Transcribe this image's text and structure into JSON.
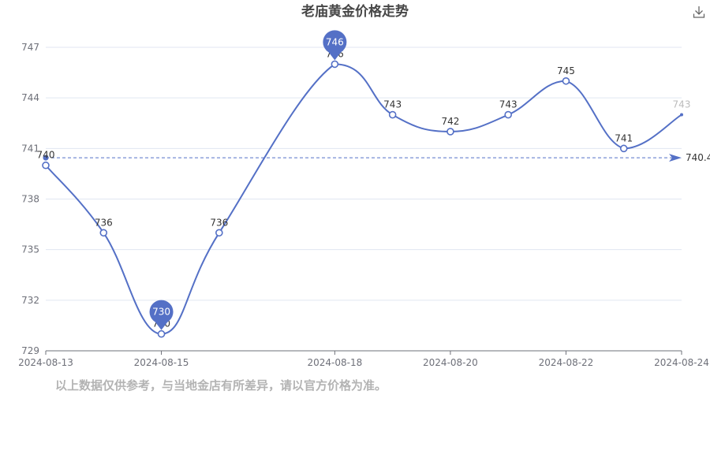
{
  "toolbar": {
    "download_icon": "download-icon"
  },
  "note": {
    "disclaimer": "以上数据仅供参考，与当地金店有所差异，请以官方价格为准。"
  },
  "chart_data": {
    "type": "line",
    "title": "老庙黄金价格走势",
    "xlabel": "",
    "ylabel": "",
    "ylim": [
      729,
      747
    ],
    "yticks": [
      729,
      732,
      735,
      738,
      741,
      744,
      747
    ],
    "xticks": [
      "2024-08-13",
      "2024-08-15",
      "2024-08-18",
      "2024-08-20",
      "2024-08-22",
      "2024-08-24"
    ],
    "x": [
      "2024-08-13",
      "2024-08-14",
      "2024-08-15",
      "2024-08-16",
      "2024-08-18",
      "2024-08-19",
      "2024-08-20",
      "2024-08-21",
      "2024-08-22",
      "2024-08-23",
      "2024-08-24"
    ],
    "series": [
      {
        "values": [
          740,
          736,
          730,
          736,
          746,
          743,
          742,
          743,
          745,
          741,
          743
        ],
        "color": "#5470c6"
      }
    ],
    "markers": {
      "max": {
        "label": "746",
        "index": 4
      },
      "min": {
        "label": "730",
        "index": 2
      }
    },
    "average": {
      "label": "740.4",
      "value": 740.45
    },
    "grid": true,
    "legend": "none"
  }
}
